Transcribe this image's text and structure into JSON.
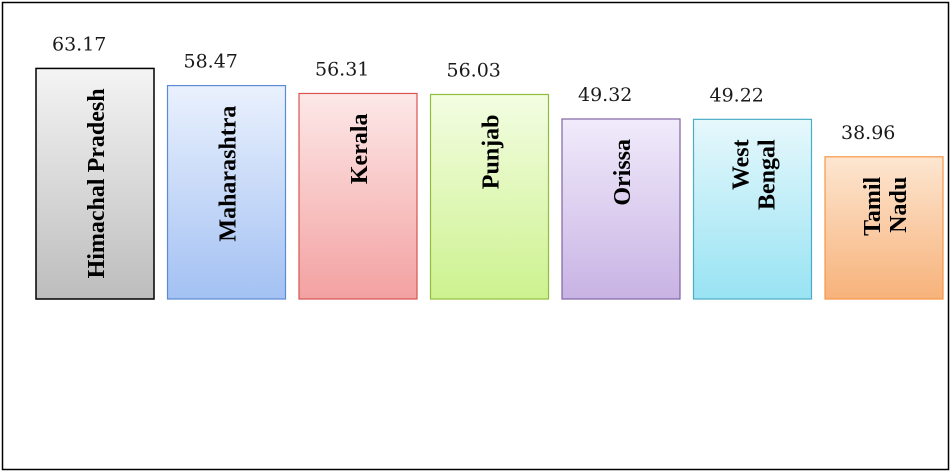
{
  "chart_data": {
    "type": "bar",
    "title": "",
    "xlabel": "",
    "ylabel": "",
    "categories": [
      "Himachal Pradesh",
      "Maharashtra",
      "Kerala",
      "Punjab",
      "Orissa",
      "West Bengal",
      "Tamil Nadu"
    ],
    "values": [
      63.17,
      58.47,
      56.31,
      56.03,
      49.32,
      49.22,
      38.96
    ],
    "value_labels": [
      "63.17",
      "58.47",
      "56.31",
      "56.03",
      "49.32",
      "49.22",
      "38.96"
    ],
    "category_label_lines": [
      [
        "Himachal Pradesh"
      ],
      [
        "Maharashtra"
      ],
      [
        "Kerala"
      ],
      [
        "Punjab"
      ],
      [
        "Orissa"
      ],
      [
        "West",
        "Bengal"
      ],
      [
        "Tamil",
        "Nadu"
      ]
    ],
    "colors": [
      [
        "#f4f4f4",
        "#bdbdbd"
      ],
      [
        "#eaf1fd",
        "#a3c1f3"
      ],
      [
        "#fde8e8",
        "#f3a1a1"
      ],
      [
        "#f3fde2",
        "#cdf28f"
      ],
      [
        "#f1ebfb",
        "#c8b3e4"
      ],
      [
        "#e6f8fc",
        "#98e3f3"
      ],
      [
        "#fde6d1",
        "#f7b27a"
      ]
    ],
    "borders": [
      "#000000",
      "#5b8bd4",
      "#d9534f",
      "#8fbf3a",
      "#8064a2",
      "#4bacc6",
      "#f79646"
    ],
    "grid": false,
    "legend": "none"
  }
}
